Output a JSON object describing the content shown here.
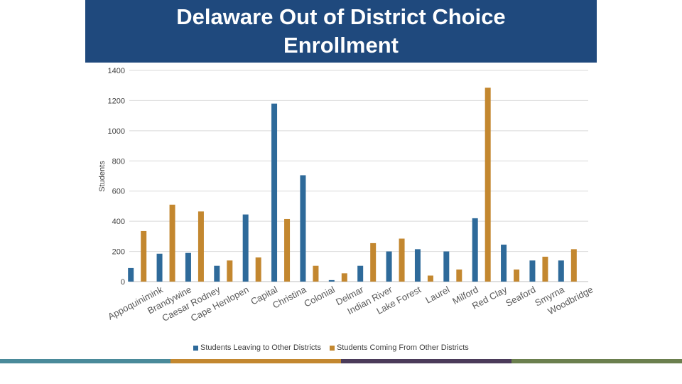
{
  "title": "Delaware Out of District Choice Enrollment",
  "colors": {
    "title_bg": "#1f497d",
    "leaving": "#2e6a9a",
    "coming": "#c3872f",
    "footer": [
      "#4a8a9a",
      "#c3872f",
      "#4b3b5a",
      "#6b7f4e"
    ]
  },
  "chart_data": {
    "type": "bar",
    "title": "Delaware Out of District Choice Enrollment",
    "ylabel": "Students",
    "xlabel": "",
    "ylim": [
      0,
      1400
    ],
    "yticks": [
      0,
      200,
      400,
      600,
      800,
      1000,
      1200,
      1400
    ],
    "grid": true,
    "legend_position": "bottom",
    "categories": [
      "Appoquinimink",
      "Brandywine",
      "Caesar Rodney",
      "Cape Henlopen",
      "Capital",
      "Christina",
      "Colonial",
      "Delmar",
      "Indian River",
      "Lake Forest",
      "Laurel",
      "Milford",
      "Red Clay",
      "Seaford",
      "Smyrna",
      "Woodbridge"
    ],
    "series": [
      {
        "name": "Students Leaving to Other Districts",
        "values": [
          90,
          185,
          190,
          105,
          445,
          1180,
          705,
          10,
          105,
          200,
          215,
          200,
          420,
          245,
          140,
          140
        ]
      },
      {
        "name": "Students Coming From Other Districts",
        "values": [
          335,
          510,
          465,
          140,
          160,
          415,
          105,
          55,
          255,
          285,
          40,
          80,
          1285,
          80,
          165,
          215
        ]
      }
    ]
  }
}
